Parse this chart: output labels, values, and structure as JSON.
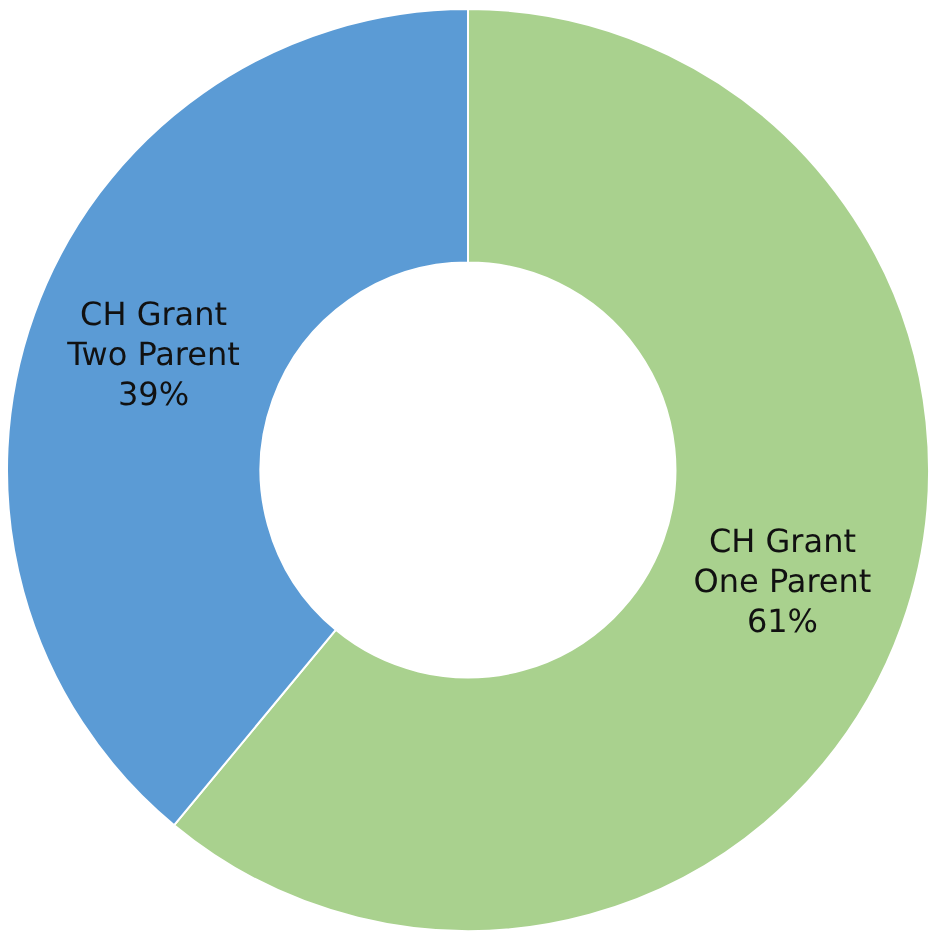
{
  "chart_data": {
    "type": "donut",
    "categories": [
      "CH Grant One Parent",
      "CH Grant Two Parent"
    ],
    "values": [
      61,
      39
    ],
    "colors": [
      "#a9d18e",
      "#5b9bd5"
    ],
    "value_labels": [
      "61%",
      "39%"
    ],
    "legend": false
  }
}
